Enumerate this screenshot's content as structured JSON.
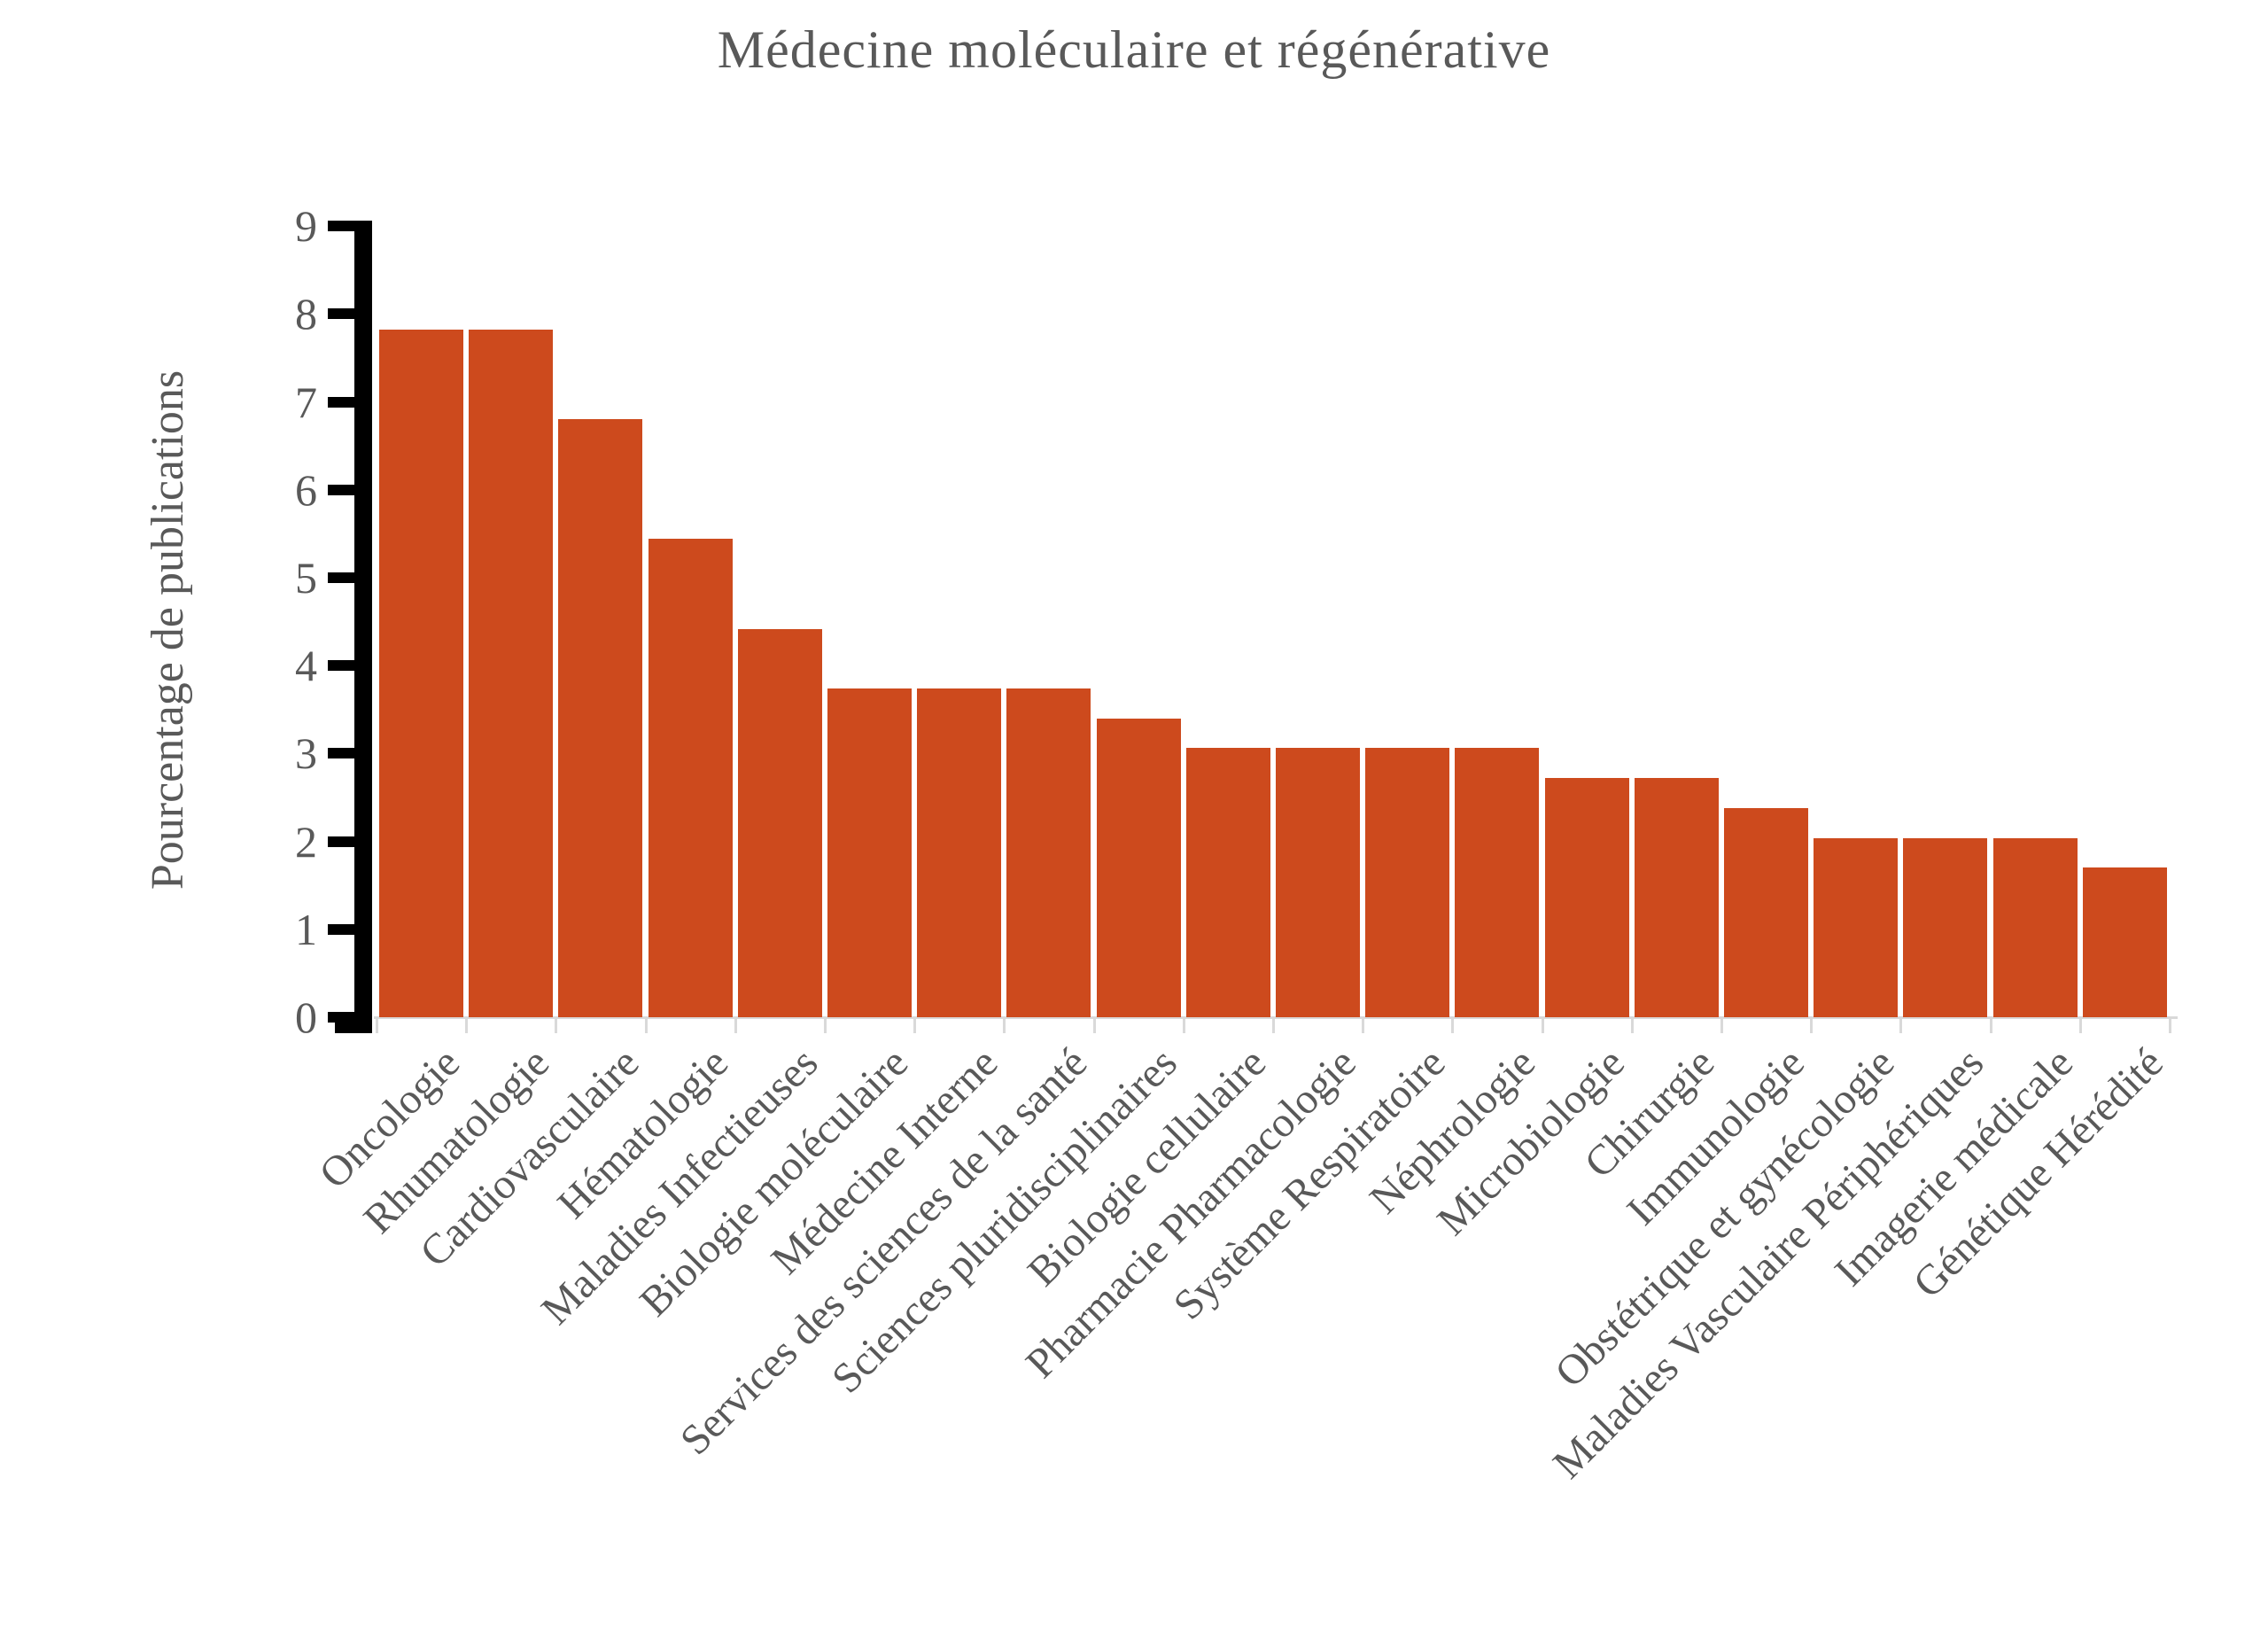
{
  "chart_data": {
    "type": "bar",
    "title": "Médecine moléculaire et régénérative",
    "xlabel": "",
    "ylabel": "Pourcentage de publications",
    "categories": [
      "Oncologie",
      "Rhumatologie",
      "Cardiovasculaire",
      "Hématologie",
      "Maladies Infectieuses",
      "Biologie moléculaire",
      "Médecine Interne",
      "Services des sciences de la santé",
      "Sciences pluridisciplinaires",
      "Biologie cellulaire",
      "Pharmacie Pharmacologie",
      "Système Respiratoire",
      "Néphrologie",
      "Microbiologie",
      "Chirurgie",
      "Immunologie",
      "Obstétrique et gynécologie",
      "Maladies Vasculaire Périphériques",
      "Imagerie médicale",
      "Génétique Hérédité"
    ],
    "values": [
      7.82,
      7.82,
      6.8,
      5.44,
      4.42,
      3.74,
      3.74,
      3.74,
      3.4,
      3.06,
      3.06,
      3.06,
      3.06,
      2.72,
      2.72,
      2.38,
      2.04,
      2.04,
      2.04,
      1.7
    ],
    "ylim": [
      0,
      9
    ],
    "yticks": [
      0,
      1,
      2,
      3,
      4,
      5,
      6,
      7,
      8,
      9
    ],
    "grid": false,
    "legend": "none",
    "bar_color": "#CD4A1D",
    "text_color": "#595959",
    "axis_color": "#000000",
    "baseline_color": "#D9D9D9",
    "background_color": "#FFFFFF"
  }
}
